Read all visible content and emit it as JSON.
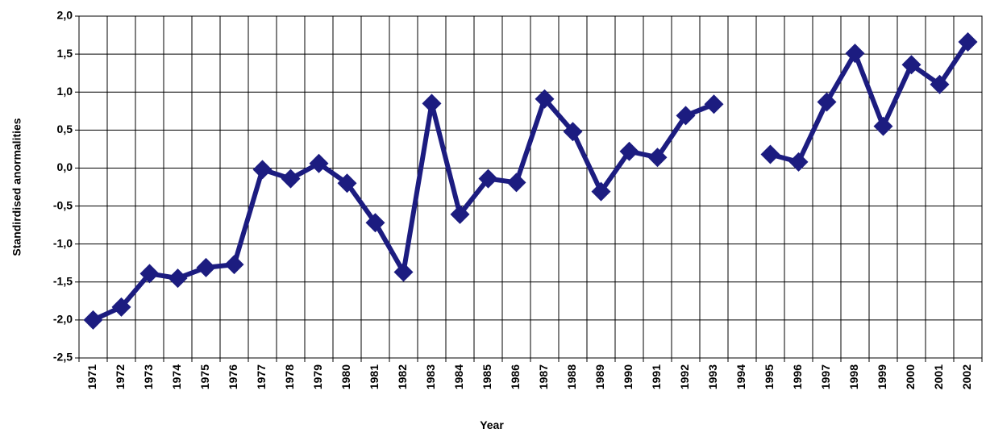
{
  "chart_data": {
    "type": "line",
    "x_label": "Year",
    "y_label": "Standirdised anormalities",
    "categories": [
      "1971",
      "1972",
      "1973",
      "1974",
      "1975",
      "1976",
      "1977",
      "1978",
      "1979",
      "1980",
      "1981",
      "1982",
      "1983",
      "1984",
      "1985",
      "1986",
      "1987",
      "1988",
      "1989",
      "1990",
      "1991",
      "1992",
      "1993",
      "1994",
      "1995",
      "1996",
      "1997",
      "1998",
      "1999",
      "2000",
      "2001",
      "2002"
    ],
    "series": [
      {
        "color": "#1c1c80",
        "values": [
          -2.0,
          -1.83,
          -1.39,
          -1.45,
          -1.31,
          -1.27,
          -0.02,
          -0.14,
          0.06,
          -0.2,
          -0.72,
          -1.37,
          0.85,
          -0.61,
          -0.14,
          -0.19,
          0.91,
          0.48,
          -0.31,
          0.22,
          0.14,
          0.69,
          0.84,
          null,
          0.18,
          0.08,
          0.87,
          1.51,
          0.55,
          1.36,
          1.1,
          1.66
        ]
      }
    ],
    "ylim": [
      -2.5,
      2.0
    ],
    "yticks": [
      {
        "value": -2.5,
        "label": "-2,5"
      },
      {
        "value": -2.0,
        "label": "-2,0"
      },
      {
        "value": -1.5,
        "label": "-1,5"
      },
      {
        "value": -1.0,
        "label": "-1,0"
      },
      {
        "value": -0.5,
        "label": "-0,5"
      },
      {
        "value": 0,
        "label": "0,0"
      },
      {
        "value": 0.5,
        "label": "0,5"
      },
      {
        "value": 1.0,
        "label": "1,0"
      },
      {
        "value": 1.5,
        "label": "1,5"
      },
      {
        "value": 2.0,
        "label": "2,0"
      }
    ],
    "grid": true
  }
}
